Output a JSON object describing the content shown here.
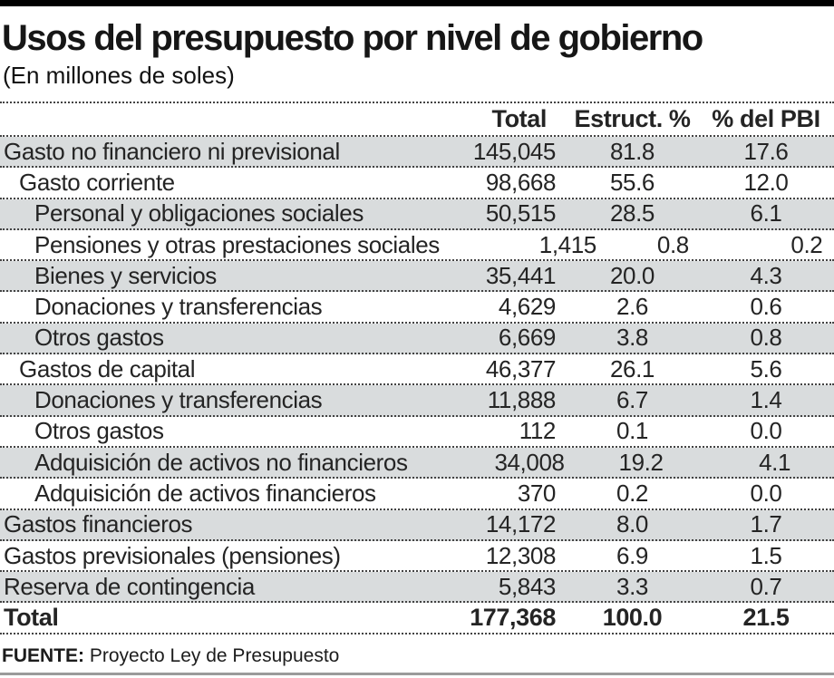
{
  "header": {
    "title": "Usos del presupuesto por nivel de gobierno",
    "subtitle": "(En millones de soles)"
  },
  "chart_data": {
    "type": "table",
    "title": "Usos del presupuesto por nivel de gobierno",
    "subtitle": "(En millones de soles)",
    "unit": "millones de soles",
    "columns": [
      "Total",
      "Estruct. %",
      "% del PBI"
    ],
    "rows": [
      {
        "label": "Gasto no financiero ni previsional",
        "total": "145,045",
        "estruct": "81.8",
        "pbi": "17.6",
        "indent": 0,
        "shaded": true,
        "bold": false
      },
      {
        "label": "Gasto corriente",
        "total": "98,668",
        "estruct": "55.6",
        "pbi": "12.0",
        "indent": 1,
        "shaded": false,
        "bold": false
      },
      {
        "label": "Personal y obligaciones sociales",
        "total": "50,515",
        "estruct": "28.5",
        "pbi": "6.1",
        "indent": 2,
        "shaded": true,
        "bold": false
      },
      {
        "label": "Pensiones y otras prestaciones sociales",
        "total": "1,415",
        "estruct": "0.8",
        "pbi": "0.2",
        "indent": 2,
        "shaded": false,
        "bold": false
      },
      {
        "label": "Bienes y servicios",
        "total": "35,441",
        "estruct": "20.0",
        "pbi": "4.3",
        "indent": 2,
        "shaded": true,
        "bold": false
      },
      {
        "label": "Donaciones y transferencias",
        "total": "4,629",
        "estruct": "2.6",
        "pbi": "0.6",
        "indent": 2,
        "shaded": false,
        "bold": false
      },
      {
        "label": "Otros gastos",
        "total": "6,669",
        "estruct": "3.8",
        "pbi": "0.8",
        "indent": 2,
        "shaded": true,
        "bold": false
      },
      {
        "label": "Gastos de capital",
        "total": "46,377",
        "estruct": "26.1",
        "pbi": "5.6",
        "indent": 1,
        "shaded": false,
        "bold": false
      },
      {
        "label": "Donaciones y transferencias",
        "total": "11,888",
        "estruct": "6.7",
        "pbi": "1.4",
        "indent": 2,
        "shaded": true,
        "bold": false
      },
      {
        "label": "Otros gastos",
        "total": "112",
        "estruct": "0.1",
        "pbi": "0.0",
        "indent": 2,
        "shaded": false,
        "bold": false
      },
      {
        "label": "Adquisición de activos no financieros",
        "total": "34,008",
        "estruct": "19.2",
        "pbi": "4.1",
        "indent": 2,
        "shaded": true,
        "bold": false
      },
      {
        "label": "Adquisición de activos financieros",
        "total": "370",
        "estruct": "0.2",
        "pbi": "0.0",
        "indent": 2,
        "shaded": false,
        "bold": false
      },
      {
        "label": "Gastos financieros",
        "total": "14,172",
        "estruct": "8.0",
        "pbi": "1.7",
        "indent": 0,
        "shaded": true,
        "bold": false
      },
      {
        "label": "Gastos previsionales (pensiones)",
        "total": "12,308",
        "estruct": "6.9",
        "pbi": "1.5",
        "indent": 0,
        "shaded": false,
        "bold": false
      },
      {
        "label": "Reserva de contingencia",
        "total": "5,843",
        "estruct": "3.3",
        "pbi": "0.7",
        "indent": 0,
        "shaded": true,
        "bold": false
      },
      {
        "label": "Total",
        "total": "177,368",
        "estruct": "100.0",
        "pbi": "21.5",
        "indent": 0,
        "shaded": false,
        "bold": true
      }
    ],
    "source_label": "FUENTE:",
    "source_text": "Proyecto Ley de Presupuesto"
  },
  "colors": {
    "top_bar": "#000000",
    "row_shade": "#d9dcdd",
    "text": "#242424",
    "dot": "#434343",
    "bottom_rule": "#9b9b9b"
  }
}
